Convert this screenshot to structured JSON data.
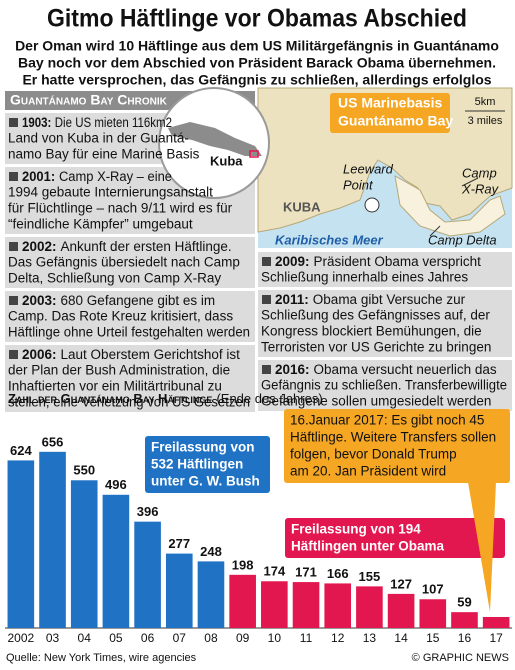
{
  "header": {
    "title": "Gitmo Häftlinge vor Obamas Abschied",
    "subtitle": [
      "Der Oman wird 10 Häftlinge aus dem US Militärgefängnis in Guantánamo",
      "Bay noch vor dem Abschied von Präsident Barack Obama übernehmen.",
      "Er hatte versprochen, das Gefängnis zu schließen, allerdings erfolglos"
    ]
  },
  "chronicle": {
    "title": "Guantánamo Bay Chronik",
    "left": [
      {
        "year": "1903:",
        "lines": [
          "Die US mieten 116km2",
          "Land von Kuba in der  Guantá-",
          "namo Bay für eine Marine Basis"
        ]
      },
      {
        "year": "2001:",
        "lines": [
          "Camp X-Ray – eine",
          "1994 gebaute Internierungsanstalt",
          "für Flüchtlinge – nach 9/11 wird es für",
          "“feindliche Kämpfer” umgebaut"
        ]
      },
      {
        "year": "2002:",
        "lines": [
          "Ankunft der ersten Häftlinge.",
          "Das Gefängnis übersiedelt nach Camp",
          "Delta, Schließung von Camp X-Ray"
        ]
      },
      {
        "year": "2003:",
        "lines": [
          "680 Gefangene gibt es im",
          "Camp. Das Rote Kreuz kritisiert, dass",
          "Häftlinge ohne Urteil festgehalten werden"
        ]
      },
      {
        "year": "2006:",
        "lines": [
          "Laut Oberstem Gerichtshof ist",
          "der Plan der Bush Administration, die",
          "Inhaftierten vor ein Militärtribunal zu",
          "stellen, eine Verletzung von US Gesetzen"
        ]
      }
    ],
    "right": [
      {
        "year": "2009:",
        "lines": [
          "Präsident Obama verspricht",
          "Schließung innerhalb eines Jahres"
        ]
      },
      {
        "year": "2011:",
        "lines": [
          "Obama gibt Versuche zur",
          "Schließung des Gefängnisses auf, der",
          "Kongress blockiert Bemühungen, die",
          "Terroristen vor US Gerichte zu bringen"
        ]
      },
      {
        "year": "2016:",
        "lines": [
          "Obama versucht neuerlich das",
          "Gefängnis zu schließen. Transferbewilligte",
          "Gefangene sollen umgesiedelt werden"
        ]
      }
    ]
  },
  "map": {
    "inset_label": "Kuba",
    "box": [
      "US Marinebasis",
      "Guantánamo Bay"
    ],
    "scale": [
      "5km",
      "3 miles"
    ],
    "leeward": [
      "Leeward",
      "Point"
    ],
    "camp_xray": [
      "Camp",
      "X-Ray"
    ],
    "land": "KUBA",
    "sea": "Karibisches Meer",
    "camp_delta": "Camp Delta"
  },
  "chart_data": {
    "type": "bar",
    "title": "Zahl der Guantánamo Bay Häftlinge",
    "subtitle": "(Ende des Jahres)",
    "categories": [
      "2002",
      "03",
      "04",
      "05",
      "06",
      "07",
      "08",
      "09",
      "10",
      "11",
      "12",
      "13",
      "14",
      "15",
      "16",
      "17"
    ],
    "values": [
      624,
      656,
      550,
      496,
      396,
      277,
      248,
      198,
      174,
      171,
      166,
      155,
      127,
      107,
      59,
      41
    ],
    "value_labels": [
      "624",
      "656",
      "550",
      "496",
      "396",
      "277",
      "248",
      "198",
      "174",
      "171",
      "166",
      "155",
      "127",
      "107",
      "59",
      null
    ],
    "colors": [
      "#1f72c4",
      "#1f72c4",
      "#1f72c4",
      "#1f72c4",
      "#1f72c4",
      "#1f72c4",
      "#1f72c4",
      "#e3174f",
      "#e3174f",
      "#e3174f",
      "#e3174f",
      "#e3174f",
      "#e3174f",
      "#e3174f",
      "#e3174f",
      "#e3174f"
    ],
    "ylim": [
      0,
      700
    ],
    "annotations": [
      {
        "lines": [
          "Freilassung von",
          "532 Häftlingen",
          "unter G. W. Bush"
        ],
        "color": "#1f72c4"
      },
      {
        "lines": [
          "Freilassung von 194",
          "Häftlingen unter Obama"
        ],
        "color": "#e3174f"
      },
      {
        "lines": [
          "16.Januar 2017: Es gibt noch 45",
          "Häftlinge. Weitere Transfers sollen",
          "folgen, bevor Donald Trump",
          "am 20. Jan Präsident wird"
        ],
        "color": "#f5a623"
      }
    ]
  },
  "footer": {
    "source": "Quelle: New York Times, wire agencies",
    "credit": "© GRAPHIC NEWS"
  }
}
